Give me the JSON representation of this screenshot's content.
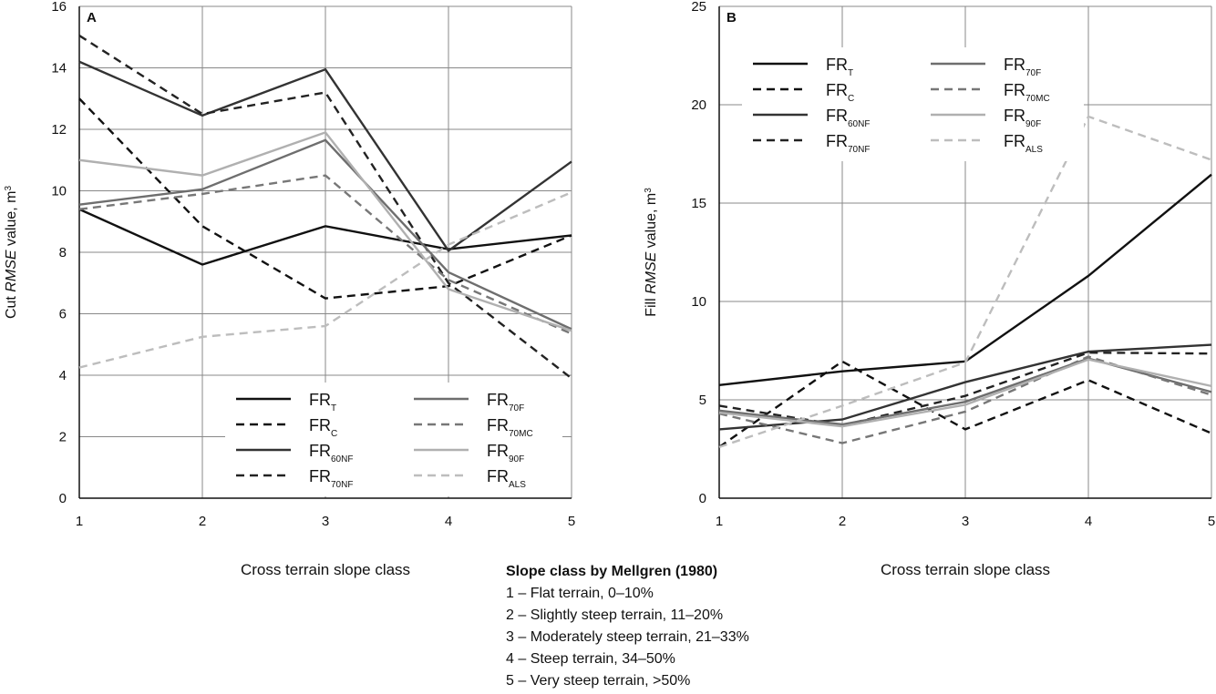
{
  "chart_data": [
    {
      "type": "line",
      "panel": "A",
      "ylabel": [
        "Cut ",
        "RMSE",
        " value, m",
        "3"
      ],
      "xlabel": "Cross terrain slope class",
      "x": [
        1,
        2,
        3,
        4,
        5
      ],
      "xlim": [
        1,
        5
      ],
      "xticks": [
        1,
        2,
        3,
        4,
        5
      ],
      "ylim": [
        0,
        16
      ],
      "yticks": [
        0,
        2,
        4,
        6,
        8,
        10,
        12,
        14,
        16
      ],
      "grid": true,
      "legend": "lower center",
      "series": [
        {
          "name": "FR",
          "subscript": "T",
          "color": "#111111",
          "dash": false,
          "values": [
            9.4,
            7.6,
            8.85,
            8.1,
            8.55
          ]
        },
        {
          "name": "FR",
          "subscript": "C",
          "color": "#111111",
          "dash": true,
          "values": [
            13.0,
            8.85,
            6.5,
            6.9,
            8.55
          ]
        },
        {
          "name": "FR",
          "subscript": "60NF",
          "color": "#333333",
          "dash": false,
          "values": [
            14.2,
            12.45,
            13.95,
            8.05,
            10.95
          ]
        },
        {
          "name": "FR",
          "subscript": "70NF",
          "color": "#222222",
          "dash": true,
          "values": [
            15.05,
            12.5,
            13.2,
            7.0,
            3.9
          ]
        },
        {
          "name": "FR",
          "subscript": "70F",
          "color": "#6e6e6e",
          "dash": false,
          "values": [
            9.55,
            10.05,
            11.65,
            7.35,
            5.5
          ]
        },
        {
          "name": "FR",
          "subscript": "70MC",
          "color": "#777777",
          "dash": true,
          "values": [
            9.4,
            9.9,
            10.5,
            7.1,
            5.35
          ]
        },
        {
          "name": "FR",
          "subscript": "90F",
          "color": "#b0b0b0",
          "dash": false,
          "values": [
            11.0,
            10.5,
            11.9,
            6.8,
            5.45
          ]
        },
        {
          "name": "FR",
          "subscript": "ALS",
          "color": "#bdbdbd",
          "dash": true,
          "values": [
            4.25,
            5.25,
            5.6,
            8.25,
            9.95
          ]
        }
      ]
    },
    {
      "type": "line",
      "panel": "B",
      "ylabel": [
        "Fill ",
        "RMSE",
        " value, m",
        "3"
      ],
      "xlabel": "Cross terrain slope class",
      "x": [
        1,
        2,
        3,
        4,
        5
      ],
      "xlim": [
        1,
        5
      ],
      "xticks": [
        1,
        2,
        3,
        4,
        5
      ],
      "ylim": [
        0,
        25
      ],
      "yticks": [
        0,
        5,
        10,
        15,
        20,
        25
      ],
      "grid": true,
      "legend": "upper left",
      "series": [
        {
          "name": "FR",
          "subscript": "T",
          "color": "#111111",
          "dash": false,
          "values": [
            5.75,
            6.45,
            6.95,
            11.3,
            16.45
          ]
        },
        {
          "name": "FR",
          "subscript": "C",
          "color": "#111111",
          "dash": true,
          "values": [
            2.6,
            6.95,
            3.5,
            6.0,
            3.3
          ]
        },
        {
          "name": "FR",
          "subscript": "60NF",
          "color": "#333333",
          "dash": false,
          "values": [
            3.5,
            4.0,
            5.9,
            7.45,
            7.8
          ]
        },
        {
          "name": "FR",
          "subscript": "70NF",
          "color": "#222222",
          "dash": true,
          "values": [
            4.7,
            3.7,
            5.2,
            7.4,
            7.35
          ]
        },
        {
          "name": "FR",
          "subscript": "70F",
          "color": "#6e6e6e",
          "dash": false,
          "values": [
            4.45,
            3.75,
            4.9,
            7.1,
            5.4
          ]
        },
        {
          "name": "FR",
          "subscript": "70MC",
          "color": "#777777",
          "dash": true,
          "values": [
            4.3,
            2.8,
            4.4,
            7.2,
            5.25
          ]
        },
        {
          "name": "FR",
          "subscript": "90F",
          "color": "#b0b0b0",
          "dash": false,
          "values": [
            4.35,
            3.65,
            4.75,
            7.05,
            5.7
          ]
        },
        {
          "name": "FR",
          "subscript": "ALS",
          "color": "#bdbdbd",
          "dash": true,
          "values": [
            2.6,
            4.7,
            6.9,
            19.4,
            17.2
          ]
        }
      ]
    }
  ],
  "note": {
    "title": "Slope class by Mellgren (1980)",
    "items": [
      "1 – Flat terrain, 0–10%",
      "2 – Slightly steep terrain, 11–20%",
      "3 – Moderately steep terrain, 21–33%",
      "4 – Steep terrain, 34–50%",
      "5 – Very steep terrain, >50%"
    ]
  }
}
